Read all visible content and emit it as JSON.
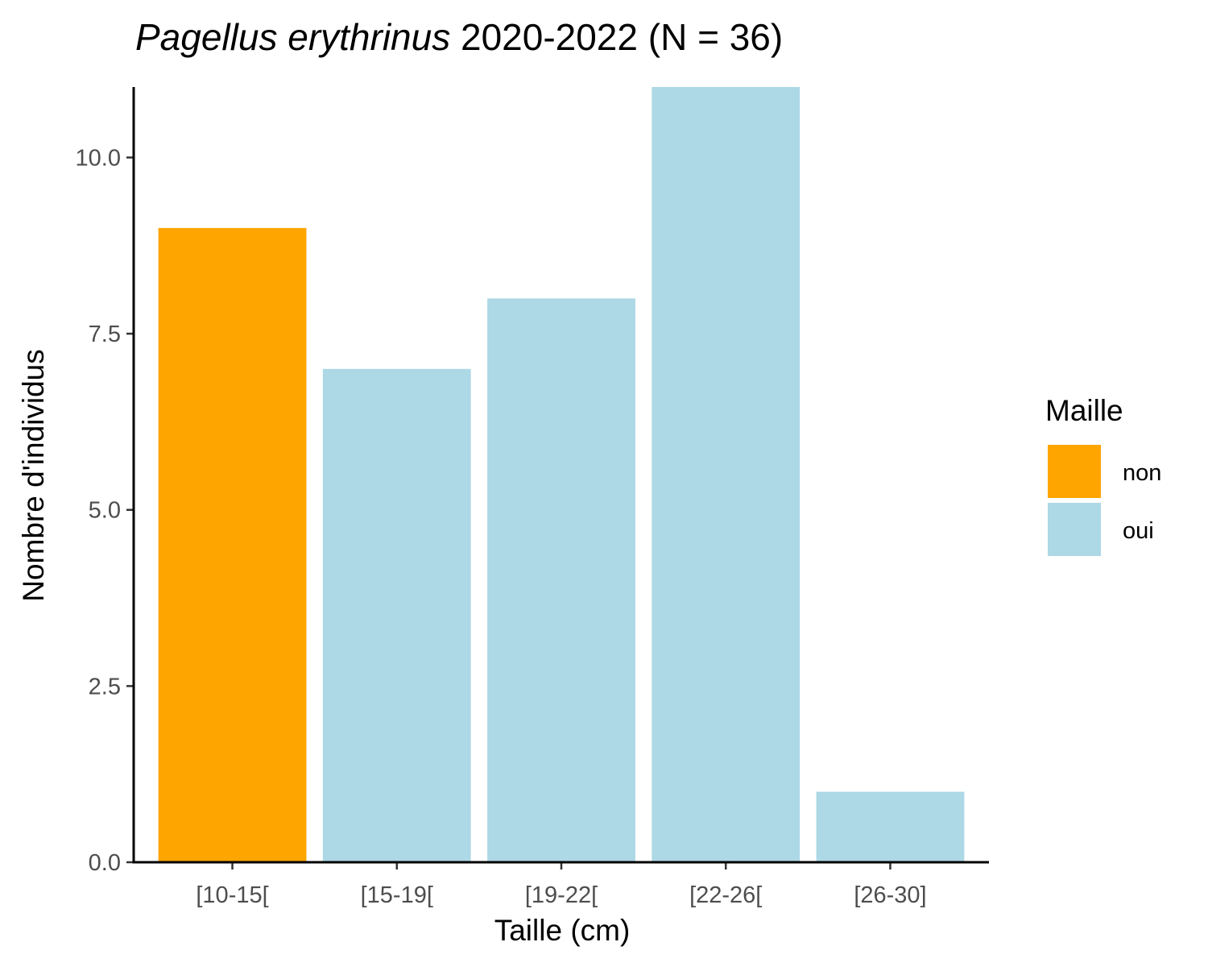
{
  "chart_data": {
    "type": "bar",
    "title": {
      "italic": "Pagellus erythrinus",
      "rest": " 2020-2022 (N = 36)"
    },
    "xlabel": "Taille (cm)",
    "ylabel": "Nombre d'individus",
    "categories": [
      "[10-15[",
      "[15-19[",
      "[19-22[",
      "[22-26[",
      "[26-30]"
    ],
    "values": [
      9,
      7,
      8,
      11,
      1
    ],
    "groups": [
      "non",
      "oui",
      "oui",
      "oui",
      "oui"
    ],
    "ylim": [
      0,
      11
    ],
    "yticks": [
      "0.0",
      "2.5",
      "5.0",
      "7.5",
      "10.0"
    ],
    "ytick_values": [
      0,
      2.5,
      5,
      7.5,
      10
    ],
    "grid": false,
    "legend": {
      "title": "Maille",
      "placement": "right",
      "items": [
        {
          "label": "non",
          "color": "#FFA500"
        },
        {
          "label": "oui",
          "color": "#ADD8E6"
        }
      ]
    }
  }
}
